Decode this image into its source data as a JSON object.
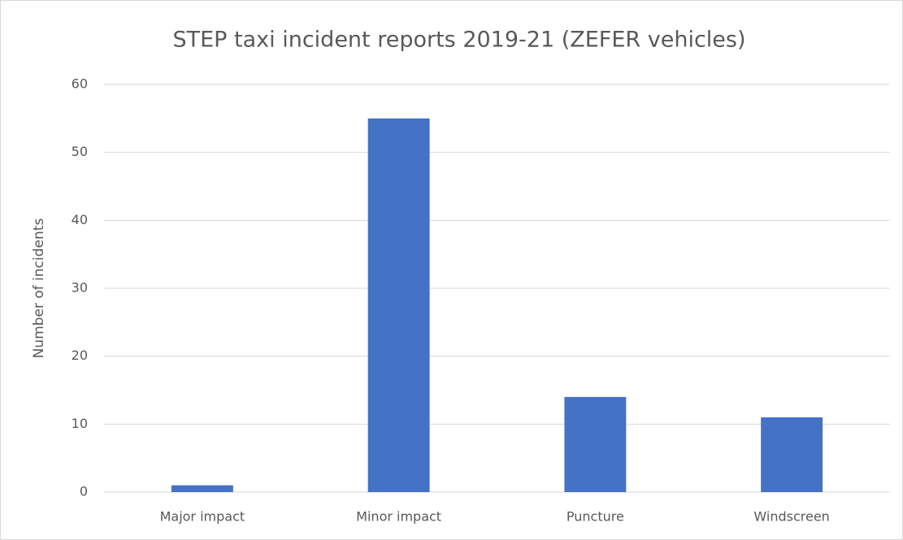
{
  "chart_data": {
    "type": "bar",
    "title": "STEP taxi incident reports 2019-21 (ZEFER vehicles)",
    "y_label": "Number of incidents",
    "categories": [
      "Major impact",
      "Minor impact",
      "Puncture",
      "Windscreen"
    ],
    "values": [
      1,
      55,
      14,
      11
    ],
    "color": "#4472c4",
    "ylim": [
      0,
      60
    ],
    "yticks": [
      0,
      10,
      20,
      30,
      40,
      50,
      60
    ],
    "grid": true
  }
}
